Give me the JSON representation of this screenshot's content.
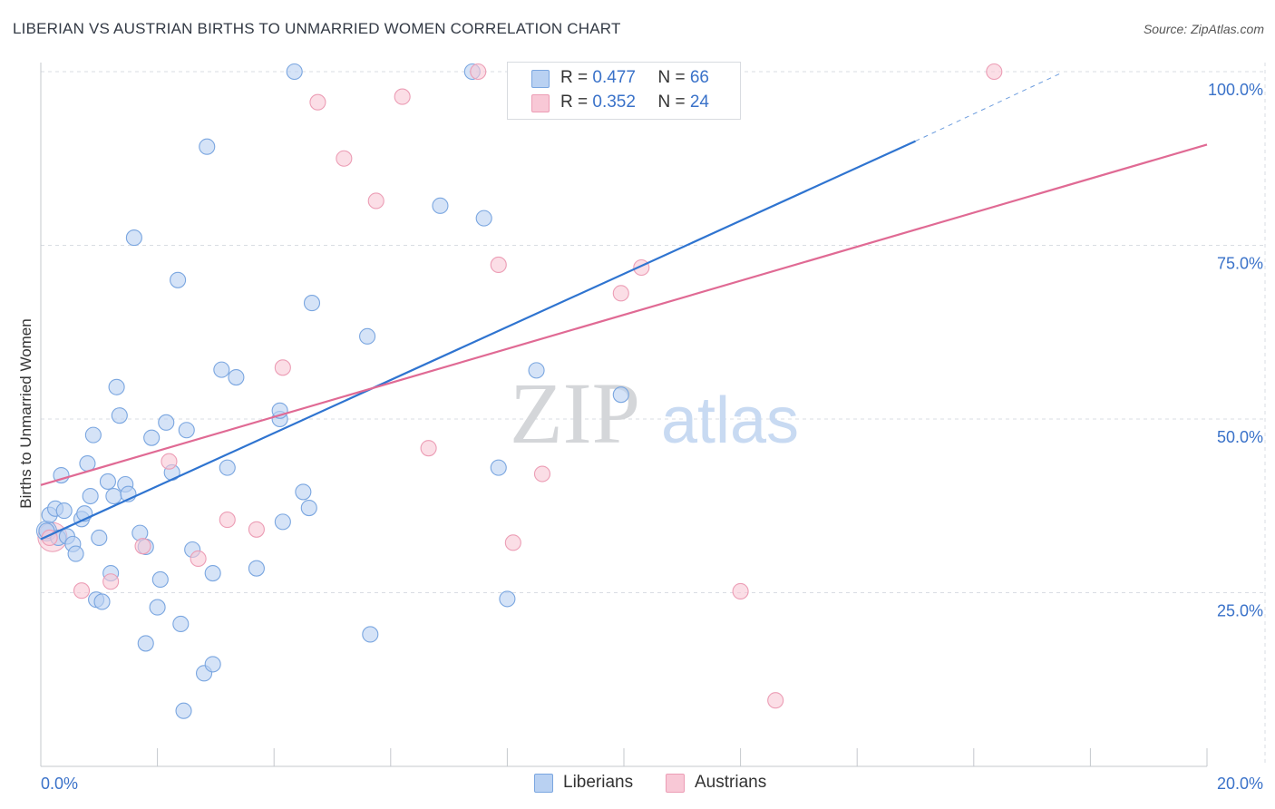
{
  "header": {
    "title": "LIBERIAN VS AUSTRIAN BIRTHS TO UNMARRIED WOMEN CORRELATION CHART",
    "source": "Source: ZipAtlas.com"
  },
  "watermark": {
    "zip": "ZIP",
    "atlas": "atlas"
  },
  "legend": {
    "rows": [
      {
        "r_label": "R = ",
        "r_value": "0.477",
        "n_label": "N = ",
        "n_value": "66"
      },
      {
        "r_label": "R = ",
        "r_value": "0.352",
        "n_label": "N = ",
        "n_value": "24"
      }
    ]
  },
  "bottom_legend": {
    "liberians": "Liberians",
    "austrians": "Austrians"
  },
  "colors": {
    "liberians_fill": "#b9d1f2",
    "liberians_stroke": "#7aa6e0",
    "liberians_line": "#2f74d0",
    "austrians_fill": "#f8c8d6",
    "austrians_stroke": "#ec9db5",
    "austrians_line": "#e06a94",
    "tick_label": "#3a72c9",
    "grid": "#d9dde3"
  },
  "chart_data": {
    "type": "scatter",
    "title": "LIBERIAN VS AUSTRIAN BIRTHS TO UNMARRIED WOMEN CORRELATION CHART",
    "xlabel": "",
    "ylabel": "Births to Unmarried Women",
    "xlim": [
      0,
      20
    ],
    "ylim": [
      0,
      102
    ],
    "x_tick_labels": [
      "0.0%",
      "20.0%"
    ],
    "y_ticks": [
      25,
      50,
      75,
      100
    ],
    "y_tick_labels": [
      "25.0%",
      "50.0%",
      "75.0%",
      "100.0%"
    ],
    "grid": true,
    "legend_placement": "top-center",
    "series": [
      {
        "name": "Liberians",
        "r": 0.477,
        "n": 66,
        "trend": {
          "x": [
            0,
            15.0
          ],
          "y": [
            32.7,
            90.0
          ],
          "dashed_to": [
            17.5,
            99.8
          ]
        },
        "points": [
          [
            0.1,
            33.9
          ],
          [
            0.15,
            36.2
          ],
          [
            0.25,
            37.1
          ],
          [
            0.3,
            32.9
          ],
          [
            0.35,
            41.9
          ],
          [
            0.4,
            36.8
          ],
          [
            0.45,
            33.1
          ],
          [
            0.55,
            32.0
          ],
          [
            0.6,
            30.6
          ],
          [
            0.7,
            35.6
          ],
          [
            0.75,
            36.4
          ],
          [
            0.8,
            43.6
          ],
          [
            0.85,
            38.9
          ],
          [
            0.9,
            47.7
          ],
          [
            0.95,
            24.0
          ],
          [
            1.0,
            32.9
          ],
          [
            1.05,
            23.7
          ],
          [
            1.15,
            41.0
          ],
          [
            1.2,
            27.8
          ],
          [
            1.25,
            38.9
          ],
          [
            1.3,
            54.6
          ],
          [
            1.35,
            50.5
          ],
          [
            1.45,
            40.6
          ],
          [
            1.5,
            39.2
          ],
          [
            1.6,
            76.1
          ],
          [
            1.7,
            33.6
          ],
          [
            1.8,
            31.6
          ],
          [
            1.8,
            17.7
          ],
          [
            1.9,
            47.3
          ],
          [
            2.0,
            22.9
          ],
          [
            2.05,
            26.9
          ],
          [
            2.15,
            49.5
          ],
          [
            2.25,
            42.3
          ],
          [
            2.35,
            70.0
          ],
          [
            2.4,
            20.5
          ],
          [
            2.45,
            8.0
          ],
          [
            2.5,
            48.4
          ],
          [
            2.6,
            31.2
          ],
          [
            2.8,
            13.4
          ],
          [
            2.85,
            89.2
          ],
          [
            2.95,
            14.7
          ],
          [
            2.95,
            27.8
          ],
          [
            3.1,
            57.1
          ],
          [
            3.2,
            43.0
          ],
          [
            3.35,
            56.0
          ],
          [
            3.7,
            28.5
          ],
          [
            4.1,
            50.0
          ],
          [
            4.1,
            51.2
          ],
          [
            4.15,
            35.2
          ],
          [
            4.35,
            100.0
          ],
          [
            4.5,
            39.5
          ],
          [
            4.6,
            37.2
          ],
          [
            4.65,
            66.7
          ],
          [
            5.6,
            61.9
          ],
          [
            5.65,
            19.0
          ],
          [
            6.85,
            80.7
          ],
          [
            7.4,
            100.0
          ],
          [
            7.6,
            78.9
          ],
          [
            7.85,
            43.0
          ],
          [
            8.0,
            24.1
          ],
          [
            8.5,
            57.0
          ],
          [
            9.95,
            53.5
          ],
          [
            11.15,
            100.0
          ]
        ]
      },
      {
        "name": "Austrians",
        "r": 0.352,
        "n": 24,
        "trend": {
          "x": [
            0,
            20.0
          ],
          "y": [
            40.5,
            89.5
          ]
        },
        "points": [
          [
            0.15,
            32.9
          ],
          [
            0.7,
            25.3
          ],
          [
            1.2,
            26.6
          ],
          [
            1.75,
            31.7
          ],
          [
            2.2,
            43.9
          ],
          [
            2.7,
            29.9
          ],
          [
            3.2,
            35.5
          ],
          [
            3.7,
            34.1
          ],
          [
            4.15,
            57.4
          ],
          [
            4.75,
            95.6
          ],
          [
            5.2,
            87.5
          ],
          [
            5.75,
            81.4
          ],
          [
            6.2,
            96.4
          ],
          [
            6.65,
            45.8
          ],
          [
            7.5,
            100.0
          ],
          [
            7.85,
            72.2
          ],
          [
            8.1,
            32.2
          ],
          [
            8.6,
            42.1
          ],
          [
            9.95,
            68.1
          ],
          [
            10.3,
            71.8
          ],
          [
            12.0,
            25.2
          ],
          [
            12.6,
            9.5
          ],
          [
            16.35,
            100.0
          ]
        ]
      }
    ]
  }
}
